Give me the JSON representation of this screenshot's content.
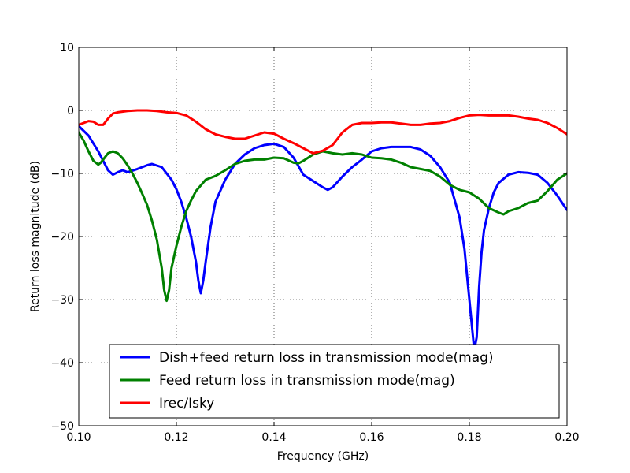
{
  "chart_data": {
    "type": "line",
    "title": "",
    "xlabel": "Frequency (GHz)",
    "ylabel": "Return loss magnitude (dB)",
    "xlim": [
      0.1,
      0.2
    ],
    "ylim": [
      -50,
      10
    ],
    "xticks": [
      "0.10",
      "0.12",
      "0.14",
      "0.16",
      "0.18",
      "0.20"
    ],
    "yticks": [
      "10",
      "0",
      "−10",
      "−20",
      "−30",
      "−40",
      "−50"
    ],
    "grid": true,
    "legend_position": "bottom-center",
    "series": [
      {
        "name": "Dish+feed return loss in transmission mode(mag)",
        "color": "#0000ff",
        "x": [
          0.1,
          0.102,
          0.104,
          0.106,
          0.107,
          0.108,
          0.109,
          0.11,
          0.112,
          0.114,
          0.115,
          0.117,
          0.118,
          0.119,
          0.12,
          0.121,
          0.122,
          0.123,
          0.124,
          0.1245,
          0.125,
          0.1255,
          0.126,
          0.127,
          0.128,
          0.13,
          0.132,
          0.134,
          0.136,
          0.138,
          0.14,
          0.142,
          0.144,
          0.146,
          0.148,
          0.15,
          0.151,
          0.152,
          0.154,
          0.156,
          0.158,
          0.16,
          0.162,
          0.164,
          0.166,
          0.168,
          0.17,
          0.172,
          0.174,
          0.176,
          0.178,
          0.179,
          0.18,
          0.181,
          0.1815,
          0.182,
          0.1825,
          0.183,
          0.184,
          0.185,
          0.186,
          0.188,
          0.19,
          0.192,
          0.194,
          0.196,
          0.198,
          0.2
        ],
        "y": [
          -2.5,
          -4.0,
          -6.5,
          -9.5,
          -10.2,
          -9.8,
          -9.5,
          -9.8,
          -9.3,
          -8.7,
          -8.5,
          -9.0,
          -10.0,
          -11.0,
          -12.5,
          -14.5,
          -17.0,
          -20.0,
          -24.0,
          -27.0,
          -29.0,
          -27.0,
          -24.0,
          -18.5,
          -14.5,
          -11.0,
          -8.5,
          -7.0,
          -6.0,
          -5.5,
          -5.3,
          -5.8,
          -7.5,
          -10.2,
          -11.2,
          -12.2,
          -12.6,
          -12.2,
          -10.5,
          -9.0,
          -7.8,
          -6.5,
          -6.0,
          -5.8,
          -5.8,
          -5.8,
          -6.2,
          -7.2,
          -9.0,
          -11.5,
          -17.0,
          -22.0,
          -30.0,
          -38.0,
          -36.0,
          -28.0,
          -22.5,
          -19.0,
          -15.5,
          -13.0,
          -11.5,
          -10.2,
          -9.8,
          -9.9,
          -10.2,
          -11.5,
          -13.5,
          -15.8
        ]
      },
      {
        "name": "Feed return loss in transmission mode(mag)",
        "color": "#008000",
        "x": [
          0.1,
          0.101,
          0.102,
          0.103,
          0.104,
          0.1045,
          0.105,
          0.106,
          0.107,
          0.108,
          0.109,
          0.11,
          0.111,
          0.112,
          0.113,
          0.114,
          0.115,
          0.116,
          0.117,
          0.1175,
          0.118,
          0.1185,
          0.119,
          0.12,
          0.121,
          0.122,
          0.123,
          0.124,
          0.126,
          0.128,
          0.13,
          0.132,
          0.134,
          0.136,
          0.138,
          0.14,
          0.142,
          0.144,
          0.145,
          0.146,
          0.148,
          0.15,
          0.152,
          0.154,
          0.156,
          0.158,
          0.16,
          0.162,
          0.164,
          0.166,
          0.168,
          0.17,
          0.172,
          0.174,
          0.176,
          0.178,
          0.18,
          0.182,
          0.184,
          0.186,
          0.187,
          0.188,
          0.19,
          0.192,
          0.194,
          0.196,
          0.198,
          0.2
        ],
        "y": [
          -3.5,
          -4.8,
          -6.5,
          -8.0,
          -8.6,
          -8.3,
          -7.8,
          -6.8,
          -6.5,
          -6.8,
          -7.6,
          -8.7,
          -10.0,
          -11.5,
          -13.2,
          -15.0,
          -17.5,
          -20.5,
          -25.0,
          -28.5,
          -30.2,
          -28.5,
          -25.0,
          -21.5,
          -18.5,
          -16.0,
          -14.3,
          -12.8,
          -11.0,
          -10.4,
          -9.5,
          -8.5,
          -8.0,
          -7.8,
          -7.8,
          -7.5,
          -7.6,
          -8.3,
          -8.4,
          -8.0,
          -7.0,
          -6.5,
          -6.8,
          -7.0,
          -6.8,
          -7.0,
          -7.5,
          -7.6,
          -7.8,
          -8.3,
          -9.0,
          -9.3,
          -9.6,
          -10.5,
          -11.8,
          -12.6,
          -13.0,
          -14.0,
          -15.5,
          -16.2,
          -16.5,
          -16.0,
          -15.5,
          -14.7,
          -14.3,
          -12.8,
          -11.0,
          -10.0
        ]
      },
      {
        "name": "Irec/Isky",
        "color": "#ff0000",
        "x": [
          0.1,
          0.101,
          0.102,
          0.103,
          0.104,
          0.105,
          0.106,
          0.107,
          0.108,
          0.11,
          0.112,
          0.114,
          0.116,
          0.118,
          0.12,
          0.122,
          0.124,
          0.126,
          0.128,
          0.13,
          0.132,
          0.134,
          0.136,
          0.138,
          0.14,
          0.142,
          0.144,
          0.146,
          0.148,
          0.15,
          0.152,
          0.154,
          0.156,
          0.158,
          0.16,
          0.162,
          0.164,
          0.166,
          0.168,
          0.17,
          0.172,
          0.174,
          0.176,
          0.178,
          0.18,
          0.182,
          0.184,
          0.186,
          0.188,
          0.19,
          0.192,
          0.194,
          0.196,
          0.198,
          0.2
        ],
        "y": [
          -2.3,
          -2.0,
          -1.7,
          -1.8,
          -2.3,
          -2.3,
          -1.3,
          -0.5,
          -0.3,
          -0.1,
          0.0,
          0.0,
          -0.1,
          -0.3,
          -0.4,
          -0.8,
          -1.8,
          -3.0,
          -3.8,
          -4.2,
          -4.5,
          -4.5,
          -4.0,
          -3.5,
          -3.7,
          -4.5,
          -5.2,
          -6.0,
          -6.8,
          -6.4,
          -5.5,
          -3.5,
          -2.3,
          -2.0,
          -2.0,
          -1.9,
          -1.9,
          -2.1,
          -2.3,
          -2.3,
          -2.1,
          -2.0,
          -1.7,
          -1.2,
          -0.8,
          -0.7,
          -0.8,
          -0.8,
          -0.8,
          -1.0,
          -1.3,
          -1.5,
          -2.0,
          -2.8,
          -3.8
        ]
      }
    ]
  }
}
